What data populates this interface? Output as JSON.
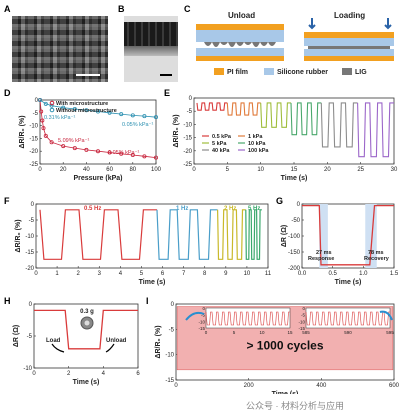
{
  "panels": {
    "A": {
      "label": "A"
    },
    "B": {
      "label": "B"
    },
    "C": {
      "label": "C",
      "unload": "Unload",
      "loading": "Loading",
      "legend": [
        {
          "name": "PI film",
          "color": "#f2a020"
        },
        {
          "name": "Silicone rubber",
          "color": "#a8c8e8"
        },
        {
          "name": "LIG",
          "color": "#777777"
        }
      ]
    },
    "D": {
      "label": "D",
      "ylabel": "ΔR/R₀ (%)",
      "xlabel": "Pressure (kPa)",
      "legend": [
        "With microstructure",
        "Without microstructure"
      ],
      "ann": [
        "0.31% kPa⁻¹",
        "5.09% kPa⁻¹",
        "0.05% kPa⁻¹",
        "0.05% kPa⁻¹"
      ]
    },
    "E": {
      "label": "E",
      "ylabel": "ΔR/R₀ (%)",
      "xlabel": "Time (s)",
      "legend": [
        "0.5 kPa",
        "5 kPa",
        "40 kPa",
        "1 kPa",
        "10 kPa",
        "100 kPa"
      ]
    },
    "F": {
      "label": "F",
      "ylabel": "ΔR/R₀ (%)",
      "xlabel": "Time (s)",
      "freq": [
        "0.5 Hz",
        "1 Hz",
        "2 Hz",
        "5 Hz"
      ]
    },
    "G": {
      "label": "G",
      "ylabel": "ΔR (Ω)",
      "xlabel": "Time (s)",
      "ann": [
        "27 ms",
        "Response",
        "78 ms",
        "Recovery"
      ]
    },
    "H": {
      "label": "H",
      "ylabel": "ΔR (Ω)",
      "xlabel": "Time (s)",
      "ann": [
        "0.3 g",
        "Load",
        "Unload"
      ]
    },
    "I": {
      "label": "I",
      "ylabel": "ΔR/R₀ (%)",
      "xlabel": "Time (s)",
      "big": "> 1000 cycles"
    }
  },
  "watermark": "公众号 · 材料分析与应用",
  "chart_data": [
    {
      "panel": "D",
      "type": "scatter",
      "xlabel": "Pressure (kPa)",
      "ylabel": "ΔR/R₀ (%)",
      "xlim": [
        0,
        100
      ],
      "ylim": [
        -25,
        0
      ],
      "xticks": [
        "0",
        "20",
        "40",
        "60",
        "80",
        "100"
      ],
      "yticks": [
        "0",
        "-5",
        "-10",
        "-15",
        "-20",
        "-25"
      ],
      "series": [
        {
          "name": "With microstructure",
          "color": "#c8243c",
          "x": [
            0,
            1,
            2,
            3,
            5,
            10,
            20,
            30,
            40,
            50,
            60,
            70,
            80,
            90,
            100
          ],
          "y": [
            0,
            -4.5,
            -8,
            -11,
            -14,
            -16.5,
            -18,
            -18.8,
            -19.5,
            -20,
            -20.5,
            -21,
            -21.5,
            -22,
            -22.5
          ]
        },
        {
          "name": "Without microstructure",
          "color": "#2a8fb0",
          "x": [
            0,
            5,
            10,
            20,
            30,
            40,
            50,
            60,
            70,
            80,
            90,
            100
          ],
          "y": [
            0,
            -1.5,
            -2.2,
            -3,
            -3.5,
            -4,
            -4.5,
            -5,
            -5.5,
            -6,
            -6.3,
            -6.7
          ]
        }
      ]
    },
    {
      "panel": "E",
      "type": "line",
      "xlabel": "Time (s)",
      "ylabel": "ΔR/R₀ (%)",
      "xlim": [
        0,
        33
      ],
      "ylim": [
        -25,
        2
      ],
      "xticks": [
        "0",
        "5",
        "10",
        "15",
        "20",
        "25",
        "30"
      ],
      "yticks": [
        "0",
        "-5",
        "-10",
        "-15",
        "-20",
        "-25"
      ],
      "series": [
        {
          "name": "0.5 kPa",
          "color": "#d93b3b",
          "cycles": 4,
          "depth": -3,
          "t0": 0.5,
          "t1": 5.5
        },
        {
          "name": "1 kPa",
          "color": "#e07a3a",
          "cycles": 4,
          "depth": -5,
          "t0": 5.5,
          "t1": 11
        },
        {
          "name": "5 kPa",
          "color": "#9fbd3b",
          "cycles": 3,
          "depth": -10,
          "t0": 11,
          "t1": 16
        },
        {
          "name": "10 kPa",
          "color": "#4aa86c",
          "cycles": 3,
          "depth": -13,
          "t0": 16,
          "t1": 21
        },
        {
          "name": "40 kPa",
          "color": "#8c8c8c",
          "cycles": 3,
          "depth": -18,
          "t0": 21,
          "t1": 27
        },
        {
          "name": "100 kPa",
          "color": "#9b66c9",
          "cycles": 3,
          "depth": -22,
          "t0": 27,
          "t1": 33
        }
      ]
    },
    {
      "panel": "F",
      "type": "line",
      "xlabel": "Time (s)",
      "ylabel": "ΔR/R₀ (%)",
      "xlim": [
        0,
        11.5
      ],
      "ylim": [
        -20,
        2
      ],
      "xticks": [
        "0",
        "1",
        "2",
        "3",
        "4",
        "5",
        "6",
        "7",
        "8",
        "9",
        "10",
        "11"
      ],
      "yticks": [
        "0",
        "-5",
        "-10",
        "-15",
        "-20"
      ],
      "series": [
        {
          "name": "0.5 Hz",
          "color": "#d93b3b",
          "cycles": 3,
          "depth": -17,
          "t0": 0.2,
          "t1": 6
        },
        {
          "name": "1 Hz",
          "color": "#4a9ec9",
          "cycles": 3,
          "depth": -17,
          "t0": 6,
          "t1": 9
        },
        {
          "name": "2 Hz",
          "color": "#c9b92a",
          "cycles": 3,
          "depth": -17,
          "t0": 9,
          "t1": 10.4
        },
        {
          "name": "5 Hz",
          "color": "#3aa86c",
          "cycles": 3,
          "depth": -17,
          "t0": 10.4,
          "t1": 11.2
        }
      ]
    },
    {
      "panel": "G",
      "type": "line",
      "xlabel": "Time (s)",
      "ylabel": "ΔR (Ω)",
      "xlim": [
        0,
        1.6
      ],
      "ylim": [
        -200,
        0
      ],
      "xticks": [
        "0.0",
        "0.5",
        "1.0",
        "1.5"
      ],
      "yticks": [
        "0",
        "-50",
        "-100",
        "-150",
        "-200"
      ],
      "series": [
        {
          "color": "#d93b3b",
          "x": [
            0,
            0.3,
            0.33,
            1.18,
            1.26,
            1.6
          ],
          "y": [
            -5,
            -5,
            -190,
            -190,
            -5,
            -5
          ]
        }
      ]
    },
    {
      "panel": "H",
      "type": "line",
      "xlabel": "Time (s)",
      "ylabel": "ΔR (Ω)",
      "xlim": [
        0,
        6
      ],
      "ylim": [
        -10,
        0
      ],
      "xticks": [
        "0",
        "2",
        "4",
        "6"
      ],
      "yticks": [
        "0",
        "-5",
        "-10"
      ],
      "series": [
        {
          "color": "#d93b3b",
          "x": [
            0,
            1.8,
            2.0,
            3.8,
            4.0,
            6
          ],
          "y": [
            -1,
            -1,
            -7,
            -7,
            -1,
            -1
          ]
        }
      ]
    },
    {
      "panel": "I",
      "type": "line",
      "xlabel": "Time (s)",
      "ylabel": "ΔR/R₀ (%)",
      "xlim": [
        0,
        600
      ],
      "ylim": [
        -15,
        0
      ],
      "xticks": [
        "0",
        "200",
        "400",
        "600"
      ],
      "yticks": [
        "0",
        "-5",
        "-10",
        "-15"
      ],
      "insets": [
        {
          "xticks": [
            "0",
            "5",
            "10",
            "15"
          ],
          "yticks": [
            "0",
            "-5",
            "-10",
            "-15"
          ]
        },
        {
          "xticks": [
            "585",
            "590",
            "595"
          ],
          "yticks": [
            "0",
            "-5",
            "-10",
            "-15"
          ]
        }
      ]
    }
  ]
}
